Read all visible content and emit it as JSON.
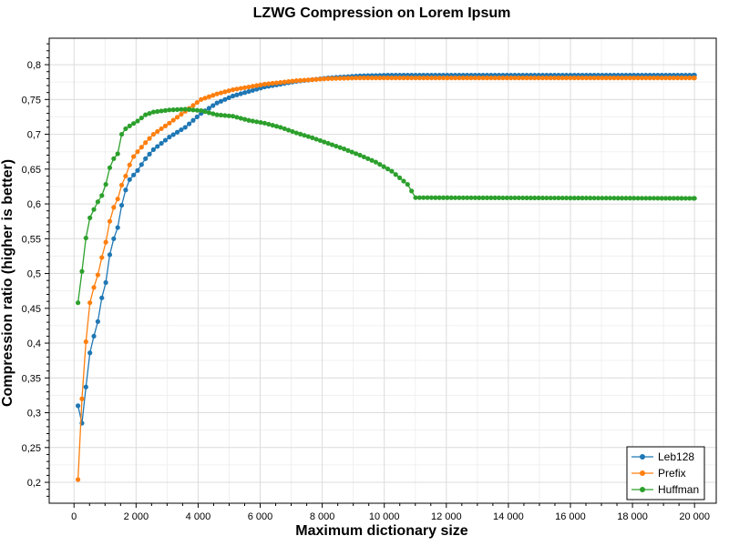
{
  "chart_data": {
    "type": "line",
    "title": "LZWG Compression on Lorem Ipsum",
    "xlabel": "Maximum dictionary size",
    "ylabel": "Compression ratio (higher is better)",
    "xlim": [
      -800,
      20700
    ],
    "ylim": [
      0.17,
      0.838
    ],
    "x_ticks": [
      0,
      2000,
      4000,
      6000,
      8000,
      10000,
      12000,
      14000,
      16000,
      18000,
      20000
    ],
    "x_tick_labels": [
      "0",
      "2 000",
      "4 000",
      "6 000",
      "8 000",
      "10 000",
      "12 000",
      "14 000",
      "16 000",
      "18 000",
      "20 000"
    ],
    "y_ticks": [
      0.2,
      0.25,
      0.3,
      0.35,
      0.4,
      0.45,
      0.5,
      0.55,
      0.6,
      0.65,
      0.7,
      0.75,
      0.8
    ],
    "y_tick_labels": [
      "0,2",
      "0,25",
      "0,3",
      "0,35",
      "0,4",
      "0,45",
      "0,5",
      "0,55",
      "0,6",
      "0,65",
      "0,7",
      "0,75",
      "0,8"
    ],
    "grid": true,
    "legend_position": "bottom-right",
    "x": {
      "start": 128,
      "step": 128,
      "end": 20000
    },
    "series": [
      {
        "name": "Leb128",
        "color": "#1f77b4",
        "anchors": [
          [
            128,
            0.31
          ],
          [
            256,
            0.285
          ],
          [
            384,
            0.337
          ],
          [
            512,
            0.386
          ],
          [
            640,
            0.41
          ],
          [
            768,
            0.431
          ],
          [
            896,
            0.465
          ],
          [
            1024,
            0.487
          ],
          [
            1152,
            0.527
          ],
          [
            1280,
            0.55
          ],
          [
            1408,
            0.566
          ],
          [
            1536,
            0.598
          ],
          [
            1664,
            0.62
          ],
          [
            1792,
            0.635
          ],
          [
            2048,
            0.648
          ],
          [
            2304,
            0.665
          ],
          [
            2560,
            0.678
          ],
          [
            3072,
            0.696
          ],
          [
            3584,
            0.71
          ],
          [
            4096,
            0.73
          ],
          [
            4608,
            0.745
          ],
          [
            5120,
            0.755
          ],
          [
            6144,
            0.768
          ],
          [
            7168,
            0.776
          ],
          [
            8192,
            0.781
          ],
          [
            9216,
            0.784
          ],
          [
            10240,
            0.785
          ],
          [
            20000,
            0.785
          ]
        ]
      },
      {
        "name": "Prefix",
        "color": "#ff7f0e",
        "anchors": [
          [
            128,
            0.204
          ],
          [
            256,
            0.32
          ],
          [
            384,
            0.402
          ],
          [
            512,
            0.458
          ],
          [
            640,
            0.48
          ],
          [
            768,
            0.498
          ],
          [
            896,
            0.523
          ],
          [
            1024,
            0.545
          ],
          [
            1152,
            0.575
          ],
          [
            1280,
            0.595
          ],
          [
            1408,
            0.607
          ],
          [
            1536,
            0.627
          ],
          [
            1664,
            0.64
          ],
          [
            1792,
            0.656
          ],
          [
            1920,
            0.668
          ],
          [
            2048,
            0.675
          ],
          [
            2304,
            0.688
          ],
          [
            2560,
            0.7
          ],
          [
            3072,
            0.716
          ],
          [
            3584,
            0.733
          ],
          [
            4096,
            0.75
          ],
          [
            4608,
            0.758
          ],
          [
            5120,
            0.764
          ],
          [
            6144,
            0.772
          ],
          [
            7168,
            0.777
          ],
          [
            8192,
            0.78
          ],
          [
            9216,
            0.781
          ],
          [
            20000,
            0.781
          ]
        ]
      },
      {
        "name": "Huffman",
        "color": "#2ca02c",
        "anchors": [
          [
            128,
            0.458
          ],
          [
            256,
            0.503
          ],
          [
            384,
            0.551
          ],
          [
            512,
            0.58
          ],
          [
            640,
            0.592
          ],
          [
            768,
            0.603
          ],
          [
            896,
            0.612
          ],
          [
            1024,
            0.628
          ],
          [
            1152,
            0.652
          ],
          [
            1280,
            0.665
          ],
          [
            1408,
            0.672
          ],
          [
            1536,
            0.7
          ],
          [
            1664,
            0.708
          ],
          [
            1792,
            0.712
          ],
          [
            2048,
            0.719
          ],
          [
            2304,
            0.728
          ],
          [
            2560,
            0.732
          ],
          [
            3072,
            0.735
          ],
          [
            3584,
            0.736
          ],
          [
            4096,
            0.734
          ],
          [
            4608,
            0.728
          ],
          [
            5120,
            0.726
          ],
          [
            5632,
            0.72
          ],
          [
            6144,
            0.716
          ],
          [
            6656,
            0.71
          ],
          [
            7168,
            0.702
          ],
          [
            7680,
            0.695
          ],
          [
            8192,
            0.687
          ],
          [
            8704,
            0.679
          ],
          [
            9216,
            0.67
          ],
          [
            9728,
            0.66
          ],
          [
            10240,
            0.647
          ],
          [
            10752,
            0.628
          ],
          [
            11008,
            0.609
          ],
          [
            20000,
            0.608
          ]
        ]
      }
    ]
  }
}
